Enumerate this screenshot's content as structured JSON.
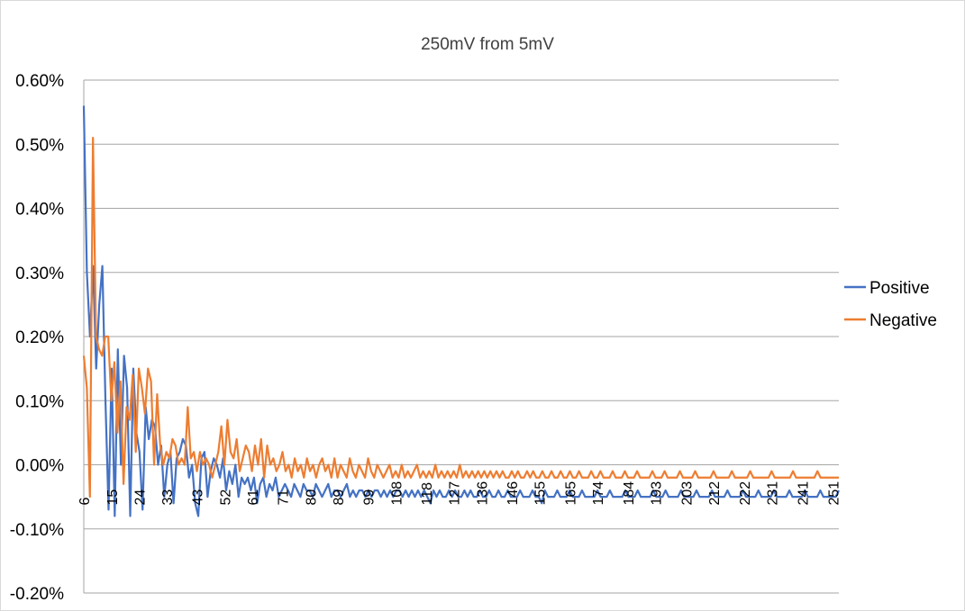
{
  "chart_data": {
    "type": "line",
    "title": "250mV from 5mV",
    "xlabel": "",
    "ylabel": "",
    "x_start": 6,
    "x_end": 253,
    "x_tick_labels": [
      "6",
      "15",
      "24",
      "33",
      "43",
      "52",
      "61",
      "71",
      "80",
      "89",
      "99",
      "108",
      "118",
      "127",
      "136",
      "146",
      "155",
      "165",
      "174",
      "184",
      "193",
      "203",
      "212",
      "222",
      "231",
      "241",
      "251"
    ],
    "y_ticks": [
      -0.2,
      -0.1,
      0.0,
      0.1,
      0.2,
      0.3,
      0.4,
      0.5,
      0.6
    ],
    "y_tick_labels": [
      "-0.20%",
      "-0.10%",
      "0.00%",
      "0.10%",
      "0.20%",
      "0.30%",
      "0.40%",
      "0.50%",
      "0.60%"
    ],
    "ylim": [
      -0.2,
      0.6
    ],
    "y_unit": "%",
    "grid": "horizontal",
    "legend": "right",
    "series": [
      {
        "name": "Positive",
        "color": "#4472c4",
        "values": [
          0.56,
          0.3,
          0.2,
          0.31,
          0.15,
          0.25,
          0.31,
          0.1,
          -0.07,
          0.15,
          -0.08,
          0.18,
          0.0,
          0.17,
          0.12,
          -0.08,
          0.15,
          0.05,
          0.02,
          -0.07,
          0.09,
          0.04,
          0.07,
          0.06,
          0.0,
          0.03,
          -0.05,
          0.0,
          0.02,
          -0.06,
          0.01,
          0.02,
          0.04,
          0.03,
          -0.02,
          0.0,
          -0.06,
          -0.08,
          0.01,
          0.02,
          -0.05,
          -0.01,
          0.01,
          0.0,
          -0.02,
          0.01,
          -0.04,
          -0.01,
          -0.03,
          0.0,
          -0.05,
          -0.02,
          -0.03,
          -0.02,
          -0.04,
          -0.02,
          -0.06,
          -0.03,
          -0.02,
          -0.05,
          -0.03,
          -0.04,
          -0.02,
          -0.05,
          -0.04,
          -0.03,
          -0.04,
          -0.05,
          -0.03,
          -0.04,
          -0.05,
          -0.03,
          -0.04,
          -0.04,
          -0.05,
          -0.03,
          -0.04,
          -0.05,
          -0.04,
          -0.03,
          -0.05,
          -0.04,
          -0.04,
          -0.05,
          -0.04,
          -0.03,
          -0.05,
          -0.04,
          -0.05,
          -0.04,
          -0.04,
          -0.05,
          -0.04,
          -0.05,
          -0.04,
          -0.04,
          -0.05,
          -0.04,
          -0.05,
          -0.04,
          -0.05,
          -0.04,
          -0.04,
          -0.05,
          -0.04,
          -0.05,
          -0.04,
          -0.05,
          -0.04,
          -0.05,
          -0.04,
          -0.05,
          -0.06,
          -0.04,
          -0.05,
          -0.04,
          -0.05,
          -0.05,
          -0.04,
          -0.05,
          -0.04,
          -0.05,
          -0.05,
          -0.04,
          -0.05,
          -0.04,
          -0.05,
          -0.05,
          -0.04,
          -0.05,
          -0.05,
          -0.04,
          -0.05,
          -0.05,
          -0.04,
          -0.05,
          -0.05,
          -0.04,
          -0.05,
          -0.05,
          -0.05,
          -0.04,
          -0.05,
          -0.05,
          -0.05,
          -0.04,
          -0.05,
          -0.05,
          -0.06,
          -0.04,
          -0.05,
          -0.05,
          -0.05,
          -0.04,
          -0.05,
          -0.05,
          -0.05,
          -0.04,
          -0.05,
          -0.05,
          -0.05,
          -0.04,
          -0.05,
          -0.05,
          -0.05,
          -0.05,
          -0.04,
          -0.05,
          -0.05,
          -0.05,
          -0.04,
          -0.05,
          -0.05,
          -0.05,
          -0.05,
          -0.04,
          -0.05,
          -0.05,
          -0.05,
          -0.04,
          -0.05,
          -0.05,
          -0.05,
          -0.05,
          -0.04,
          -0.05,
          -0.05,
          -0.05,
          -0.04,
          -0.05,
          -0.05,
          -0.05,
          -0.05,
          -0.04,
          -0.05,
          -0.05,
          -0.05,
          -0.05,
          -0.04,
          -0.05,
          -0.05,
          -0.05,
          -0.05,
          -0.04,
          -0.05,
          -0.05,
          -0.05,
          -0.05,
          -0.04,
          -0.05,
          -0.05,
          -0.05,
          -0.05,
          -0.04,
          -0.05,
          -0.05,
          -0.05,
          -0.05,
          -0.04,
          -0.05,
          -0.05,
          -0.05,
          -0.05,
          -0.04,
          -0.05,
          -0.05,
          -0.05,
          -0.05,
          -0.04,
          -0.05,
          -0.05,
          -0.05,
          -0.05,
          -0.04,
          -0.05,
          -0.05,
          -0.05,
          -0.05,
          -0.04,
          -0.05,
          -0.05,
          -0.05,
          -0.05,
          -0.05,
          -0.04
        ]
      },
      {
        "name": "Negative",
        "color": "#ed7d31",
        "values": [
          0.17,
          0.12,
          -0.05,
          0.51,
          0.2,
          0.18,
          0.17,
          0.2,
          0.2,
          0.1,
          0.16,
          0.05,
          0.13,
          -0.03,
          0.09,
          0.07,
          0.14,
          0.02,
          0.15,
          0.12,
          0.08,
          0.15,
          0.13,
          0.0,
          0.11,
          0.03,
          0.0,
          0.02,
          0.01,
          0.04,
          0.03,
          0.0,
          0.01,
          0.0,
          0.09,
          0.01,
          0.02,
          -0.01,
          0.02,
          0.0,
          0.01,
          0.0,
          -0.02,
          0.0,
          0.02,
          0.06,
          0.0,
          0.07,
          0.02,
          0.01,
          0.04,
          -0.01,
          0.01,
          0.03,
          0.02,
          -0.01,
          0.03,
          0.0,
          0.04,
          -0.02,
          0.03,
          0.0,
          0.01,
          -0.01,
          0.0,
          0.02,
          -0.01,
          0.0,
          -0.02,
          0.01,
          -0.01,
          0.0,
          -0.02,
          0.01,
          -0.01,
          0.0,
          -0.02,
          0.0,
          0.01,
          -0.01,
          0.0,
          -0.02,
          0.01,
          -0.02,
          0.0,
          -0.01,
          -0.02,
          0.01,
          -0.01,
          -0.02,
          0.0,
          -0.01,
          -0.02,
          0.01,
          -0.01,
          -0.02,
          0.0,
          -0.01,
          -0.02,
          -0.01,
          0.0,
          -0.02,
          -0.01,
          -0.02,
          0.0,
          -0.02,
          -0.01,
          -0.02,
          -0.01,
          0.0,
          -0.02,
          -0.01,
          -0.02,
          -0.01,
          -0.02,
          0.0,
          -0.02,
          -0.01,
          -0.02,
          -0.01,
          -0.02,
          -0.01,
          -0.02,
          0.0,
          -0.02,
          -0.01,
          -0.02,
          -0.01,
          -0.02,
          -0.01,
          -0.02,
          -0.01,
          -0.02,
          -0.01,
          -0.02,
          -0.01,
          -0.02,
          -0.01,
          -0.02,
          -0.02,
          -0.01,
          -0.02,
          -0.01,
          -0.02,
          -0.02,
          -0.01,
          -0.02,
          -0.01,
          -0.02,
          -0.02,
          -0.01,
          -0.02,
          -0.02,
          -0.01,
          -0.02,
          -0.02,
          -0.01,
          -0.02,
          -0.02,
          -0.01,
          -0.02,
          -0.02,
          -0.01,
          -0.02,
          -0.02,
          -0.02,
          -0.01,
          -0.02,
          -0.02,
          -0.01,
          -0.02,
          -0.02,
          -0.02,
          -0.01,
          -0.02,
          -0.02,
          -0.02,
          -0.01,
          -0.02,
          -0.02,
          -0.02,
          -0.01,
          -0.02,
          -0.02,
          -0.02,
          -0.02,
          -0.01,
          -0.02,
          -0.02,
          -0.02,
          -0.01,
          -0.02,
          -0.02,
          -0.02,
          -0.02,
          -0.01,
          -0.02,
          -0.02,
          -0.02,
          -0.02,
          -0.01,
          -0.02,
          -0.02,
          -0.02,
          -0.02,
          -0.02,
          -0.01,
          -0.02,
          -0.02,
          -0.02,
          -0.02,
          -0.02,
          -0.01,
          -0.02,
          -0.02,
          -0.02,
          -0.02,
          -0.02,
          -0.01,
          -0.02,
          -0.02,
          -0.02,
          -0.02,
          -0.02,
          -0.02,
          -0.01,
          -0.02,
          -0.02,
          -0.02,
          -0.02,
          -0.02,
          -0.02,
          -0.01,
          -0.02,
          -0.02,
          -0.02,
          -0.02,
          -0.02,
          -0.02,
          -0.02,
          -0.01,
          -0.02,
          -0.02,
          -0.02,
          -0.02,
          -0.02,
          -0.02,
          -0.02
        ]
      }
    ]
  }
}
